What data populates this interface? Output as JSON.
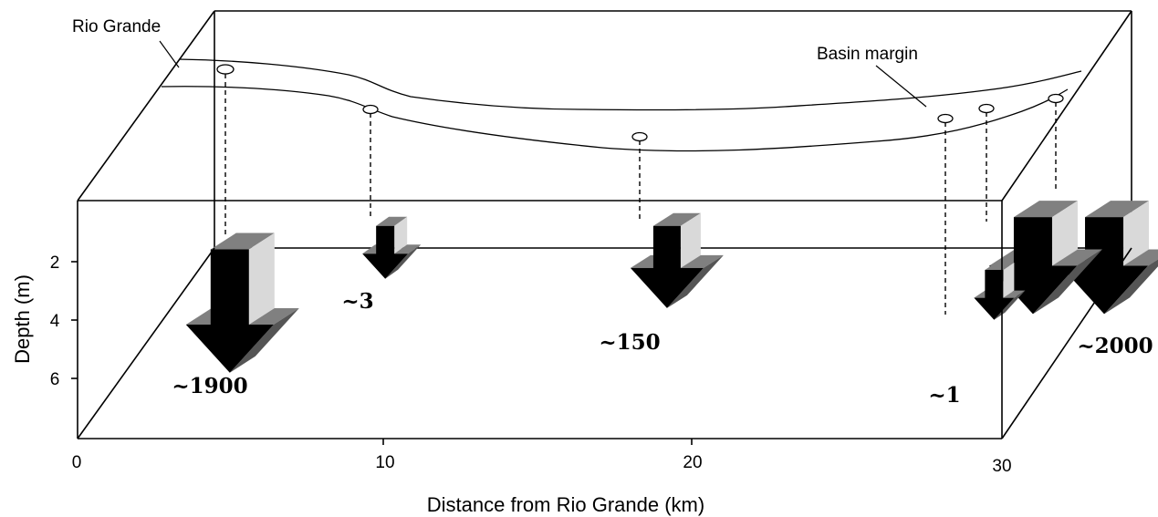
{
  "labels": {
    "river": "Rio Grande",
    "basin": "Basin margin",
    "x_axis_title": "Distance from Rio Grande (km)",
    "y_axis_title": "Depth (m)"
  },
  "x_ticks": [
    "0",
    "10",
    "20",
    "30"
  ],
  "y_ticks": [
    "2",
    "4",
    "6"
  ],
  "wells": [
    {
      "id": "w1",
      "value_label": "~1900",
      "distance_km": 4.7,
      "depth_top_m": 1.6,
      "depth_bottom_m": 5.8
    },
    {
      "id": "w2",
      "value_label": "~3",
      "distance_km": 9.5,
      "depth_top_m": 0.8,
      "depth_bottom_m": 2.6
    },
    {
      "id": "w3",
      "value_label": "~150",
      "distance_km": 18.2,
      "depth_top_m": 0.8,
      "depth_bottom_m": 3.6
    },
    {
      "id": "w4",
      "value_label": "~1",
      "distance_km": 28.3,
      "depth_top_m": 2.3,
      "depth_bottom_m": 4.0
    },
    {
      "id": "w5",
      "value_label": "",
      "distance_km": 29.5,
      "depth_top_m": 0.5,
      "depth_bottom_m": 3.8
    },
    {
      "id": "w6",
      "value_label": "~2000",
      "distance_km": 31.7,
      "depth_top_m": 0.5,
      "depth_bottom_m": 3.8
    }
  ]
}
